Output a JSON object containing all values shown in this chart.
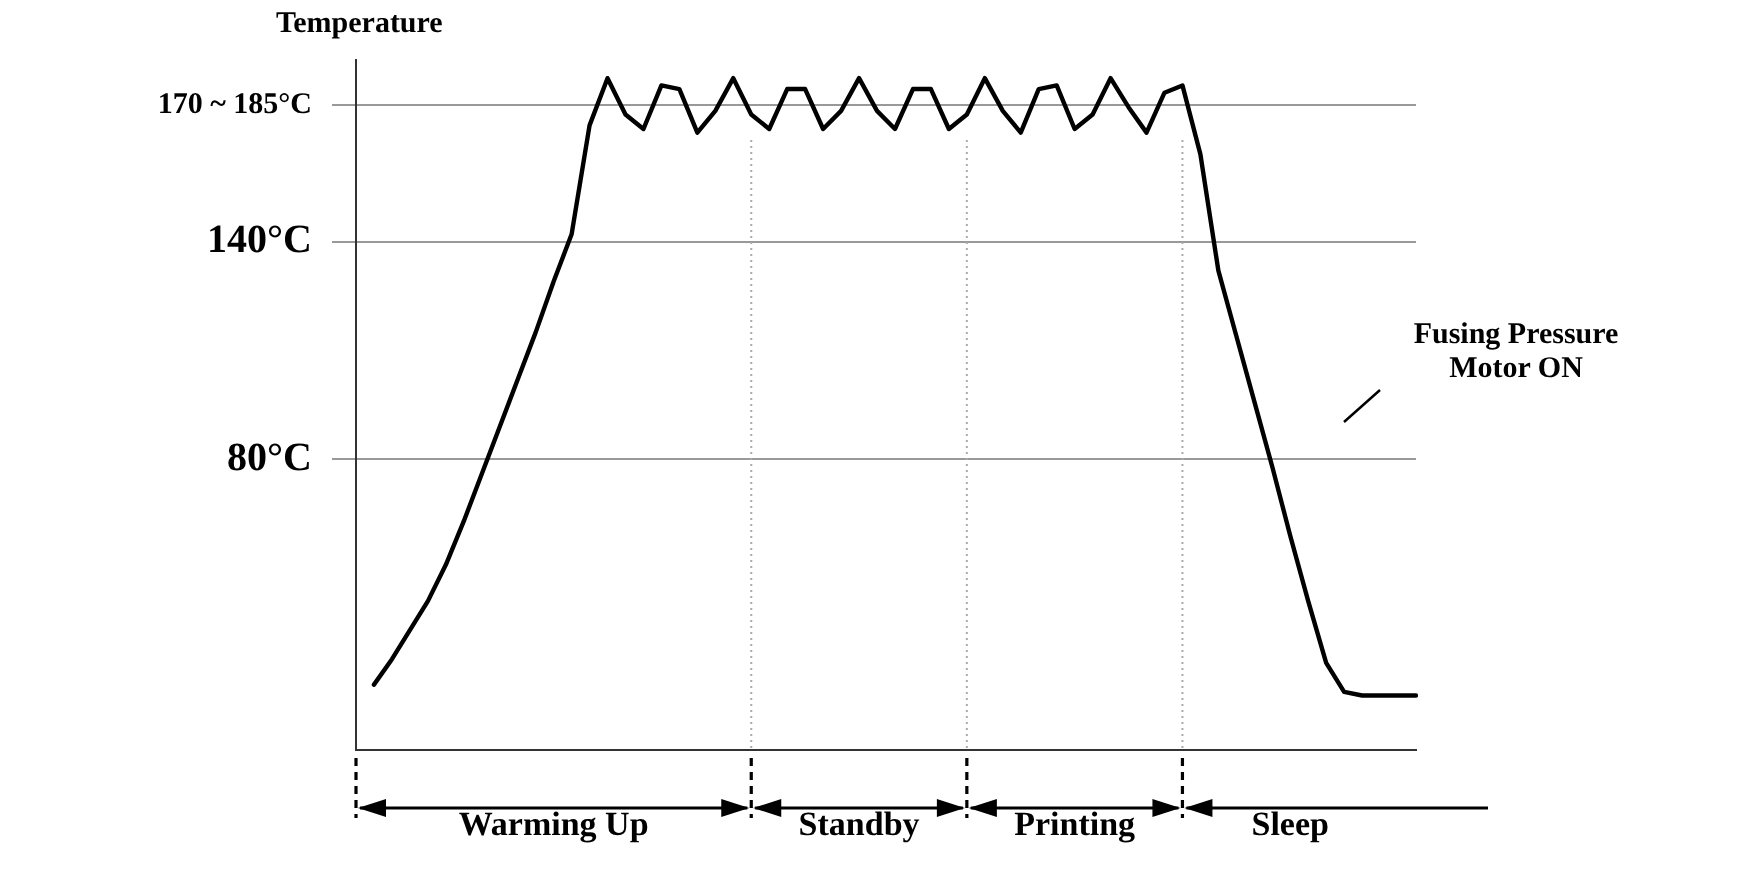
{
  "chart_data": {
    "type": "line",
    "ylabel": "Temperature",
    "categories": [
      null,
      null,
      null,
      null,
      null,
      null,
      null,
      null,
      null,
      null,
      null,
      "Warming Up",
      null,
      null,
      null,
      null,
      null,
      null,
      null,
      null,
      null,
      null,
      null,
      null,
      null,
      null,
      null,
      null,
      "Standby",
      null,
      null,
      null,
      null,
      null,
      null,
      null,
      null,
      null,
      null,
      null,
      "Printing",
      null,
      null,
      null,
      null,
      null,
      null,
      null,
      null,
      null,
      null,
      null,
      "Sleep",
      null,
      null,
      null,
      null,
      null,
      null,
      null
    ],
    "series": [
      {
        "color": "#000000",
        "values": [
          null,
          18,
          25,
          33,
          41,
          51,
          63,
          76,
          89,
          102,
          115,
          129,
          142,
          172,
          185,
          175,
          171,
          183,
          182,
          170,
          176,
          185,
          175,
          171,
          182,
          182,
          171,
          176,
          185,
          176,
          171,
          182,
          182,
          171,
          175,
          185,
          176,
          170,
          182,
          183,
          171,
          175,
          185,
          177,
          170,
          181,
          183,
          164,
          132,
          114,
          96,
          78,
          59,
          41,
          24,
          16,
          15,
          15,
          15,
          15
        ]
      }
    ],
    "ylim": [
      0,
      190
    ],
    "yticks": [
      {
        "value": 177.5,
        "label": "170 ~ 185°C"
      },
      {
        "value": 140,
        "label": "140°C"
      },
      {
        "value": 80,
        "label": "80°C"
      }
    ],
    "grid": "y",
    "legend": false,
    "marker": "none",
    "line_style": "solid",
    "annotations": [
      "Fusing Pressure Motor ON"
    ]
  }
}
